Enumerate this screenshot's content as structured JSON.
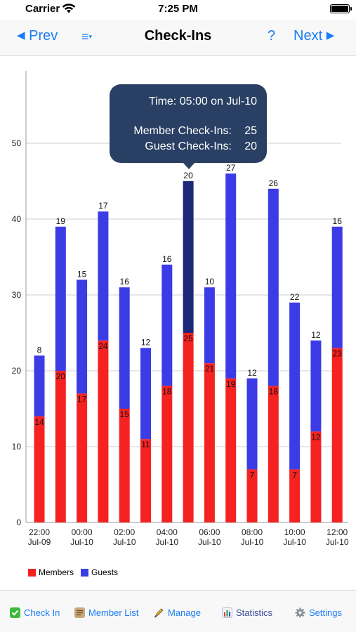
{
  "status_bar": {
    "carrier": "Carrier",
    "time": "7:25 PM"
  },
  "nav": {
    "prev_label": "Prev",
    "prev_arrow": "◀",
    "menu_glyph": "≡",
    "menu_caret": "▾",
    "title": "Check-Ins",
    "help_label": "?",
    "next_label": "Next",
    "next_arrow": "▶"
  },
  "tooltip": {
    "time_line": "Time: 05:00 on Jul-10",
    "member_label": "Member Check-Ins:",
    "member_value": "25",
    "guest_label": "Guest Check-Ins:",
    "guest_value": "20"
  },
  "legend": {
    "members": "Members",
    "guests": "Guests"
  },
  "colors": {
    "members": "#f62222",
    "guests": "#3c3ce6",
    "selected_members": "#f62222",
    "selected_guests": "#1e2878",
    "tooltip_bg": "#293f63",
    "accent": "#1a7cf5"
  },
  "tabs": [
    {
      "label": "Check In",
      "icon": "check-icon"
    },
    {
      "label": "Member List",
      "icon": "scroll-icon"
    },
    {
      "label": "Manage",
      "icon": "pen-icon"
    },
    {
      "label": "Statistics",
      "icon": "bar-chart-icon"
    },
    {
      "label": "Settings",
      "icon": "gear-icon"
    }
  ],
  "chart_data": {
    "type": "bar",
    "stacked": true,
    "categories": [
      "22:00",
      "23:00",
      "00:00",
      "01:00",
      "02:00",
      "03:00",
      "04:00",
      "05:00",
      "06:00",
      "07:00",
      "08:00",
      "09:00",
      "10:00",
      "11:00",
      "12:00"
    ],
    "x_tick_labels": [
      {
        "time": "22:00",
        "date": "Jul-09"
      },
      {
        "time": "00:00",
        "date": "Jul-10"
      },
      {
        "time": "02:00",
        "date": "Jul-10"
      },
      {
        "time": "04:00",
        "date": "Jul-10"
      },
      {
        "time": "06:00",
        "date": "Jul-10"
      },
      {
        "time": "08:00",
        "date": "Jul-10"
      },
      {
        "time": "10:00",
        "date": "Jul-10"
      },
      {
        "time": "12:00",
        "date": "Jul-10"
      }
    ],
    "series": [
      {
        "name": "Members",
        "values": [
          14,
          20,
          17,
          24,
          15,
          11,
          18,
          25,
          21,
          19,
          7,
          18,
          7,
          12,
          23
        ]
      },
      {
        "name": "Guests",
        "values": [
          8,
          19,
          15,
          17,
          16,
          12,
          16,
          20,
          10,
          27,
          12,
          26,
          22,
          12,
          16
        ]
      }
    ],
    "y_ticks": [
      0,
      10,
      20,
      30,
      40,
      50
    ],
    "ylim": [
      0,
      59
    ],
    "selected_index": 7,
    "grid": true,
    "legend_position": "bottom-left"
  }
}
